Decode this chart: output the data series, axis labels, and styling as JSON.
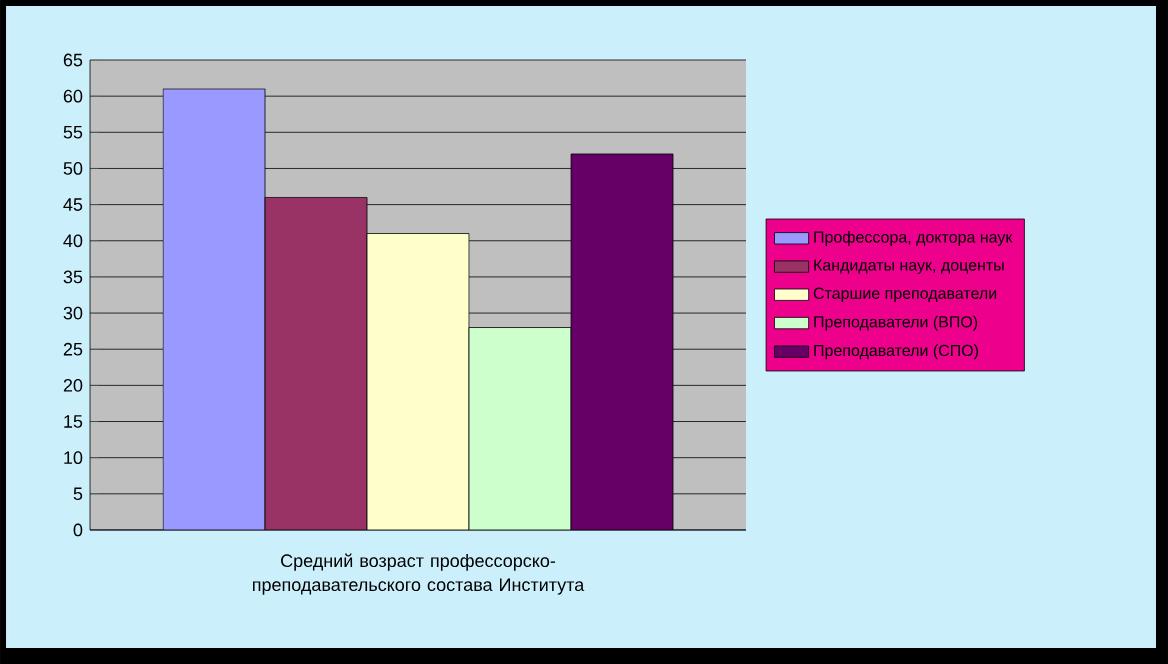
{
  "chart_data": {
    "type": "bar",
    "categories": [
      "Средний возраст профессорско-преподавательского состава Института"
    ],
    "series": [
      {
        "name": "Профессора, доктора наук",
        "color": "#9999ff",
        "values": [
          61
        ]
      },
      {
        "name": "Кандидаты наук, доценты",
        "color": "#993366",
        "values": [
          46
        ]
      },
      {
        "name": "Старшие преподаватели",
        "color": "#ffffcc",
        "values": [
          41
        ]
      },
      {
        "name": "Преподаватели  (ВПО)",
        "color": "#ccffcc",
        "values": [
          28
        ]
      },
      {
        "name": "Преподаватели (СПО)",
        "color": "#660066",
        "values": [
          52
        ]
      }
    ],
    "ylim": [
      0,
      65
    ],
    "yticks": [
      0,
      5,
      10,
      15,
      20,
      25,
      30,
      35,
      40,
      45,
      50,
      55,
      60,
      65
    ],
    "grid": "y",
    "legend": "right"
  }
}
